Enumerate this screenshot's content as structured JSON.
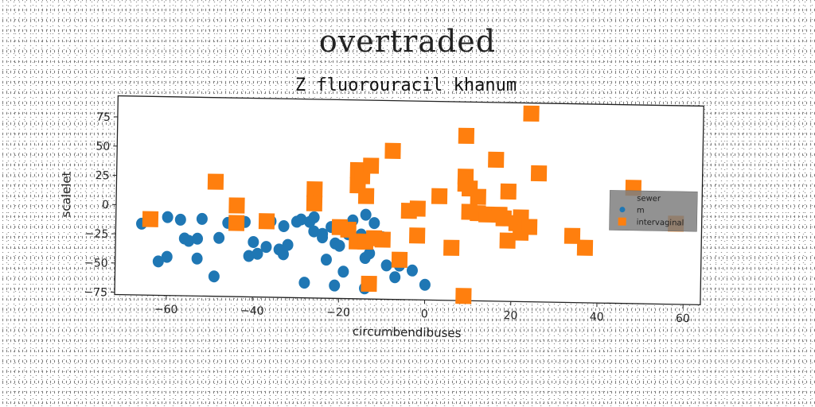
{
  "figure": {
    "supertitle": "overtraded"
  },
  "chart_data": {
    "type": "scatter",
    "title": "Z fluorouracil khanum",
    "xlabel": "circumbendibuses",
    "ylabel": "scalelet",
    "xlim": [
      -72,
      64
    ],
    "ylim": [
      -77,
      93
    ],
    "xticks": [
      -60,
      -40,
      -20,
      0,
      20,
      40,
      60
    ],
    "yticks": [
      -75,
      -50,
      -25,
      0,
      25,
      50,
      75
    ],
    "grid": false,
    "legend": {
      "placement": "center-right",
      "entries": [
        "sewer",
        "m",
        "intervaginal"
      ]
    },
    "series": [
      {
        "name": "m",
        "marker": "circle",
        "color": "#1f77b4",
        "points": [
          [
            -66,
            -16
          ],
          [
            -62,
            -48
          ],
          [
            -60,
            -44
          ],
          [
            -60,
            -10
          ],
          [
            -57,
            -12
          ],
          [
            -56,
            -28
          ],
          [
            -55,
            -30
          ],
          [
            -53,
            -28
          ],
          [
            -53,
            -45
          ],
          [
            -52,
            -11
          ],
          [
            -49,
            -60
          ],
          [
            -48,
            -27
          ],
          [
            -46,
            -14
          ],
          [
            -42,
            -13
          ],
          [
            -41,
            -42
          ],
          [
            -40,
            -30
          ],
          [
            -39,
            -40
          ],
          [
            -37,
            -34
          ],
          [
            -36,
            -12
          ],
          [
            -34,
            -36
          ],
          [
            -33,
            -16
          ],
          [
            -33,
            -40
          ],
          [
            -32,
            -32
          ],
          [
            -30,
            -12
          ],
          [
            -29,
            -10
          ],
          [
            -28,
            -64
          ],
          [
            -27,
            -12
          ],
          [
            -26,
            -20
          ],
          [
            -26,
            -8
          ],
          [
            -24,
            -22
          ],
          [
            -24,
            -25
          ],
          [
            -23,
            -44
          ],
          [
            -22,
            -16
          ],
          [
            -21,
            -30
          ],
          [
            -21,
            -66
          ],
          [
            -20,
            -32
          ],
          [
            -19,
            -54
          ],
          [
            -18,
            -22
          ],
          [
            -17,
            -10
          ],
          [
            -15,
            -22
          ],
          [
            -14,
            -5
          ],
          [
            -14,
            -42
          ],
          [
            -14,
            -68
          ],
          [
            -13,
            -38
          ],
          [
            -12,
            -12
          ],
          [
            -10,
            -24
          ],
          [
            -9,
            -48
          ],
          [
            -7,
            -58
          ],
          [
            -6,
            -48
          ],
          [
            -3,
            -52
          ],
          [
            0,
            -64
          ]
        ]
      },
      {
        "name": "intervaginal",
        "marker": "square",
        "color": "#ff7f0e",
        "points": [
          [
            -64,
            -12
          ],
          [
            -49,
            21
          ],
          [
            -44,
            -14
          ],
          [
            -44,
            1
          ],
          [
            -37,
            -12
          ],
          [
            -26,
            16
          ],
          [
            -26,
            4
          ],
          [
            -20,
            -16
          ],
          [
            -18,
            -18
          ],
          [
            -16,
            -28
          ],
          [
            -16,
            33
          ],
          [
            -16,
            20
          ],
          [
            -15,
            28
          ],
          [
            -14,
            -28
          ],
          [
            -14,
            11
          ],
          [
            -13,
            37
          ],
          [
            -13,
            -64
          ],
          [
            -12,
            -25
          ],
          [
            -10,
            -26
          ],
          [
            -8,
            50
          ],
          [
            -6,
            -43
          ],
          [
            -4,
            -1
          ],
          [
            -2,
            1
          ],
          [
            -2,
            -22
          ],
          [
            3,
            12
          ],
          [
            6,
            -32
          ],
          [
            9,
            -73
          ],
          [
            9,
            64
          ],
          [
            9,
            29
          ],
          [
            9,
            23
          ],
          [
            10,
            -1
          ],
          [
            10,
            19
          ],
          [
            12,
            -2
          ],
          [
            12,
            12
          ],
          [
            14,
            -3
          ],
          [
            16,
            44
          ],
          [
            17,
            -3
          ],
          [
            18,
            -6
          ],
          [
            19,
            -25
          ],
          [
            19,
            17
          ],
          [
            21,
            -10
          ],
          [
            22,
            -5
          ],
          [
            22,
            -18
          ],
          [
            24,
            -13
          ],
          [
            24,
            84
          ],
          [
            26,
            33
          ],
          [
            34,
            -20
          ],
          [
            37,
            -30
          ],
          [
            48,
            22
          ],
          [
            58,
            -8
          ]
        ]
      },
      {
        "name": "sewer",
        "marker": "none",
        "color": "#7f7f7f",
        "points": []
      }
    ]
  }
}
